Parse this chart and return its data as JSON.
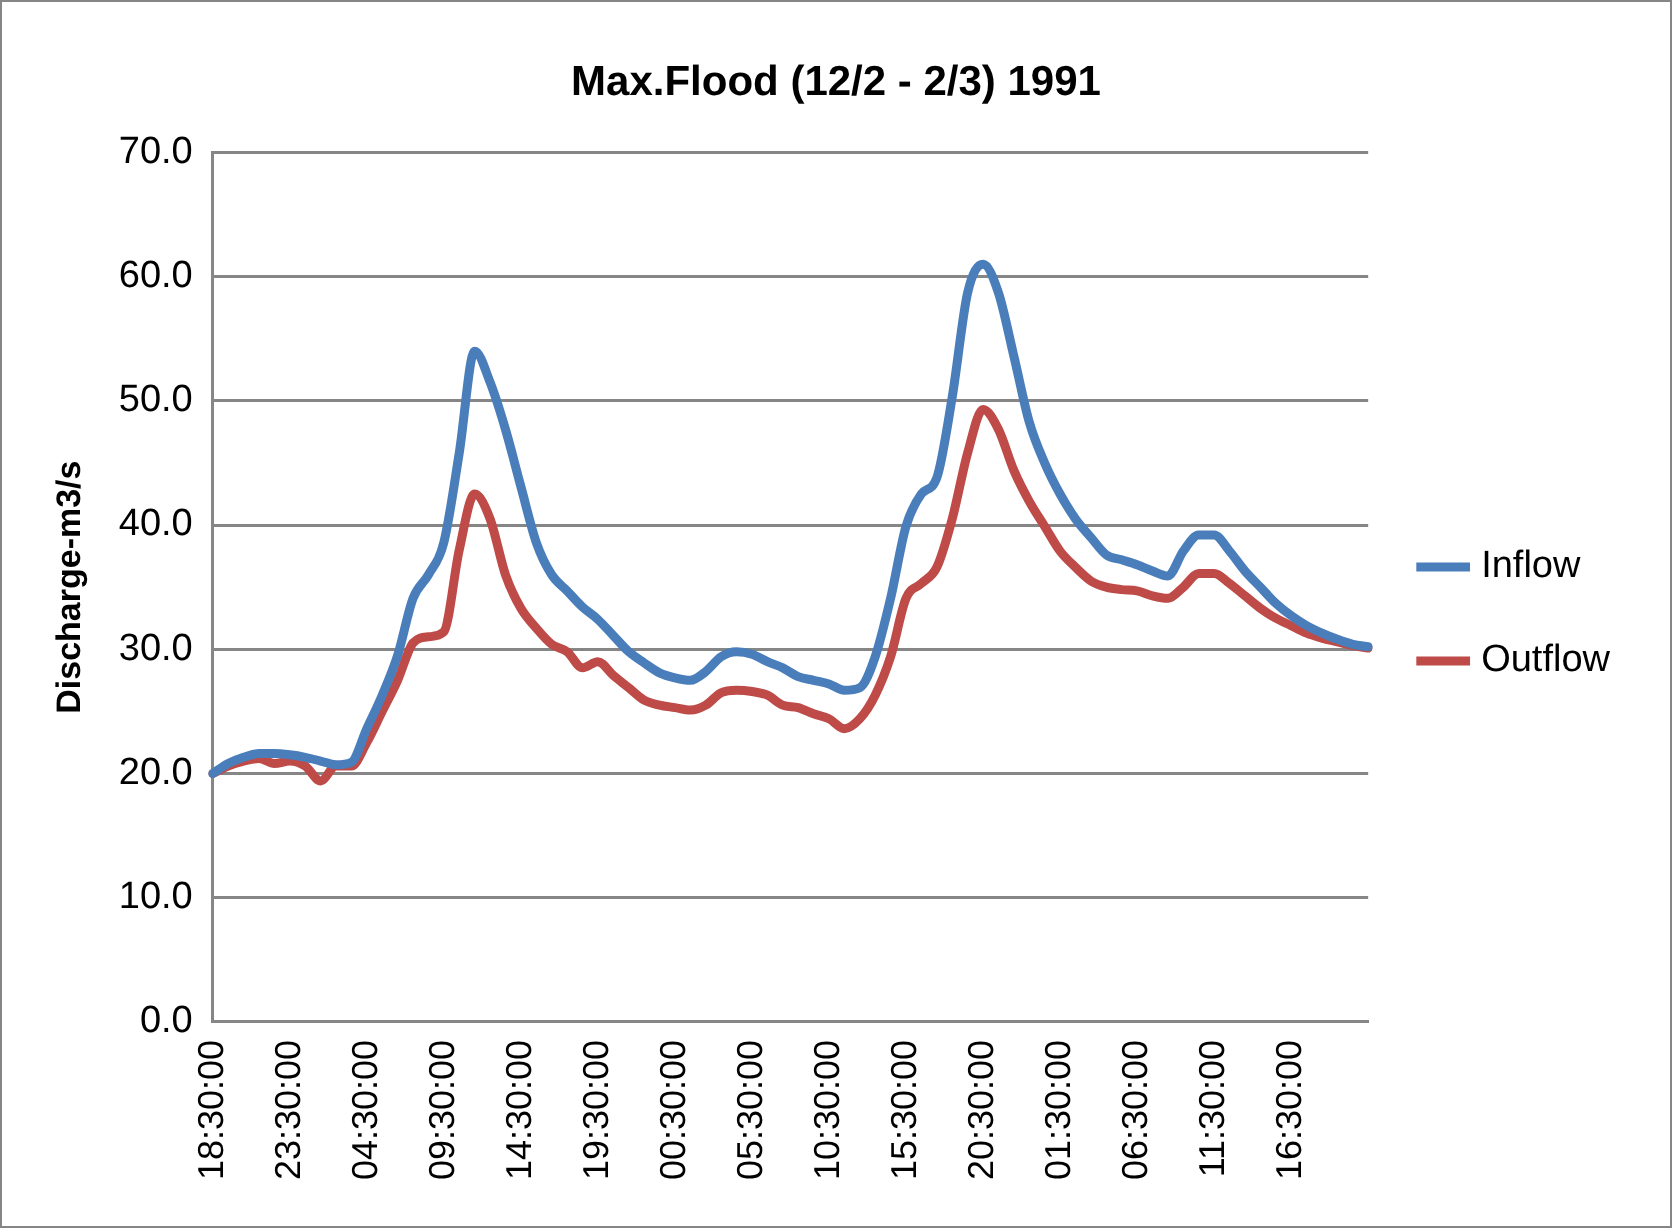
{
  "chart_data": {
    "type": "line",
    "title": "Max.Flood (12/2 - 2/3) 1991",
    "ylabel": "Discharge-m3/s",
    "categories": [
      "18:30:00",
      null,
      null,
      null,
      null,
      "23:30:00",
      null,
      null,
      null,
      null,
      "04:30:00",
      null,
      null,
      null,
      null,
      "09:30:00",
      null,
      null,
      null,
      null,
      "14:30:00",
      null,
      null,
      null,
      null,
      "19:30:00",
      null,
      null,
      null,
      null,
      "00:30:00",
      null,
      null,
      null,
      null,
      "05:30:00",
      null,
      null,
      null,
      null,
      "10:30:00",
      null,
      null,
      null,
      null,
      "15:30:00",
      null,
      null,
      null,
      null,
      "20:30:00",
      null,
      null,
      null,
      null,
      "01:30:00",
      null,
      null,
      null,
      null,
      "06:30:00",
      null,
      null,
      null,
      null,
      "11:30:00",
      null,
      null,
      null,
      null,
      "16:30:00",
      null,
      null,
      null,
      null,
      null
    ],
    "series": [
      {
        "name": "Inflow",
        "color": "#4a7ebb",
        "values": [
          20.0,
          20.8,
          21.3,
          21.6,
          21.6,
          21.5,
          21.3,
          21.0,
          20.7,
          20.9,
          23.6,
          26.3,
          29.5,
          34.1,
          36.0,
          38.6,
          45.8,
          54.0,
          51.5,
          47.7,
          43.1,
          38.6,
          36.0,
          34.7,
          33.4,
          32.4,
          31.1,
          29.8,
          28.9,
          28.1,
          27.7,
          27.5,
          28.2,
          29.4,
          29.8,
          29.6,
          29.0,
          28.5,
          27.8,
          27.5,
          27.2,
          26.7,
          26.9,
          29.4,
          34.1,
          39.9,
          42.5,
          43.8,
          50.3,
          58.7,
          61.0,
          58.7,
          53.6,
          48.3,
          45.0,
          42.5,
          40.5,
          39.0,
          37.6,
          37.2,
          36.8,
          36.3,
          35.9,
          37.9,
          39.2,
          39.2,
          37.9,
          36.3,
          35.0,
          33.7,
          32.7,
          31.9,
          31.3,
          30.8,
          30.4,
          30.2
        ]
      },
      {
        "name": "Outflow",
        "color": "#be4b48",
        "values": [
          20.0,
          20.6,
          21.0,
          21.2,
          20.8,
          21.0,
          20.6,
          19.4,
          20.6,
          20.6,
          22.5,
          25.0,
          27.5,
          30.5,
          31.0,
          31.4,
          38.0,
          42.5,
          40.5,
          36.0,
          33.3,
          31.7,
          30.4,
          29.8,
          28.5,
          29.0,
          27.9,
          26.9,
          25.9,
          25.5,
          25.3,
          25.1,
          25.5,
          26.5,
          26.7,
          26.6,
          26.3,
          25.5,
          25.3,
          24.8,
          24.4,
          23.6,
          24.4,
          26.3,
          29.4,
          34.1,
          35.3,
          36.6,
          40.5,
          45.8,
          49.3,
          47.7,
          44.4,
          41.9,
          39.9,
          37.9,
          36.6,
          35.5,
          35.0,
          34.8,
          34.7,
          34.3,
          34.1,
          35.0,
          36.1,
          36.1,
          35.3,
          34.3,
          33.3,
          32.5,
          31.9,
          31.3,
          30.9,
          30.6,
          30.3,
          30.1
        ]
      }
    ],
    "ylim": [
      0,
      70
    ],
    "yticks": [
      {
        "value": 0,
        "label": "0.0"
      },
      {
        "value": 10,
        "label": "10.0"
      },
      {
        "value": 20,
        "label": "20.0"
      },
      {
        "value": 30,
        "label": "30.0"
      },
      {
        "value": 40,
        "label": "40.0"
      },
      {
        "value": 50,
        "label": "50.0"
      },
      {
        "value": 60,
        "label": "60.0"
      },
      {
        "value": 70,
        "label": "70.0"
      }
    ],
    "grid": "y",
    "legend": "right",
    "marker": "none",
    "line_style": "solid"
  }
}
